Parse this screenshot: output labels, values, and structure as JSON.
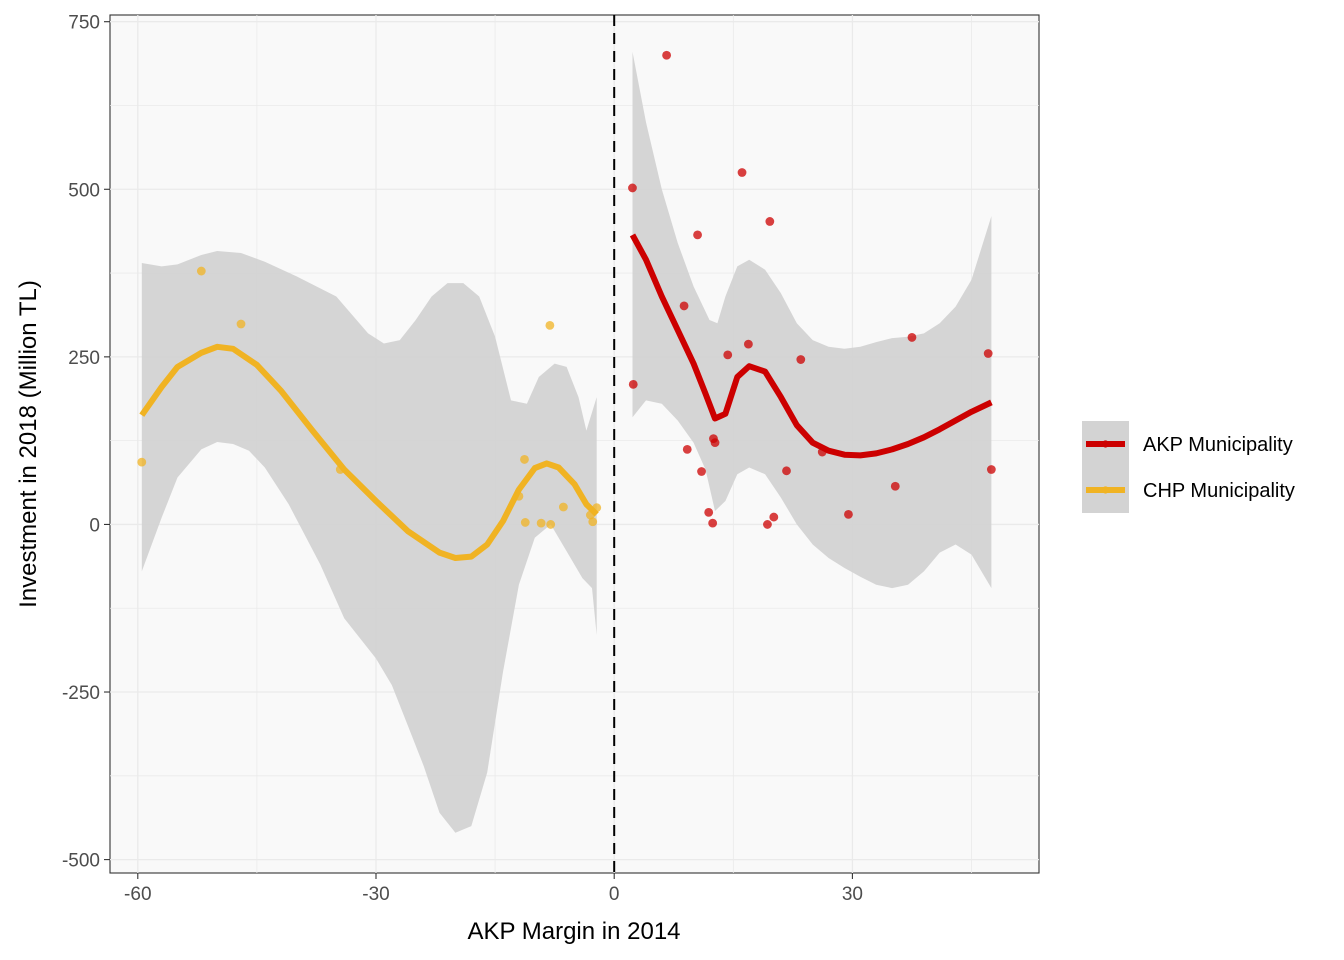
{
  "chart_data": {
    "type": "scatter",
    "xlabel": "AKP Margin in 2014",
    "ylabel": "Investment in 2018 (Million TL)",
    "xlim": [
      -63.5,
      53.5
    ],
    "ylim": [
      -520,
      760
    ],
    "x_ticks": [
      -60,
      -30,
      0,
      30
    ],
    "x_tick_labels": [
      "-60",
      "-30",
      "0",
      "30"
    ],
    "y_ticks": [
      -500,
      -250,
      0,
      250,
      500,
      750
    ],
    "y_tick_labels": [
      "-500",
      "-250",
      "0",
      "250",
      "500",
      "750"
    ],
    "grid": true,
    "cutoff_line_x": 0,
    "legend_position": "right",
    "colors": {
      "akp": "#cc0000",
      "chp": "#f0b323",
      "ribbon": "#d3d3d3",
      "panel": "#f9f9f9",
      "grid": "#eaeaea"
    },
    "series": [
      {
        "name": "AKP Municipality",
        "points": [
          {
            "x": 2.3,
            "y": 502
          },
          {
            "x": 2.4,
            "y": 209
          },
          {
            "x": 6.6,
            "y": 700
          },
          {
            "x": 8.8,
            "y": 326
          },
          {
            "x": 9.2,
            "y": 112
          },
          {
            "x": 10.5,
            "y": 432
          },
          {
            "x": 11.0,
            "y": 79
          },
          {
            "x": 11.9,
            "y": 18
          },
          {
            "x": 12.4,
            "y": 2
          },
          {
            "x": 12.5,
            "y": 128
          },
          {
            "x": 12.7,
            "y": 122
          },
          {
            "x": 14.3,
            "y": 253
          },
          {
            "x": 16.1,
            "y": 525
          },
          {
            "x": 16.9,
            "y": 269
          },
          {
            "x": 19.3,
            "y": 0
          },
          {
            "x": 19.6,
            "y": 452
          },
          {
            "x": 20.1,
            "y": 11
          },
          {
            "x": 21.7,
            "y": 80
          },
          {
            "x": 23.5,
            "y": 246
          },
          {
            "x": 26.2,
            "y": 108
          },
          {
            "x": 29.5,
            "y": 15
          },
          {
            "x": 35.4,
            "y": 57
          },
          {
            "x": 37.5,
            "y": 279
          },
          {
            "x": 47.1,
            "y": 255
          },
          {
            "x": 47.5,
            "y": 82
          }
        ],
        "smooth": [
          {
            "x": 2.3,
            "y": 432
          },
          {
            "x": 4,
            "y": 395
          },
          {
            "x": 6,
            "y": 340
          },
          {
            "x": 8,
            "y": 290
          },
          {
            "x": 10,
            "y": 240
          },
          {
            "x": 11.5,
            "y": 195
          },
          {
            "x": 12.7,
            "y": 158
          },
          {
            "x": 14,
            "y": 165
          },
          {
            "x": 15.5,
            "y": 220
          },
          {
            "x": 17,
            "y": 236
          },
          {
            "x": 19,
            "y": 228
          },
          {
            "x": 21,
            "y": 190
          },
          {
            "x": 23,
            "y": 148
          },
          {
            "x": 25,
            "y": 122
          },
          {
            "x": 27,
            "y": 110
          },
          {
            "x": 29,
            "y": 104
          },
          {
            "x": 31,
            "y": 103
          },
          {
            "x": 33,
            "y": 106
          },
          {
            "x": 35,
            "y": 112
          },
          {
            "x": 37,
            "y": 120
          },
          {
            "x": 39,
            "y": 130
          },
          {
            "x": 41,
            "y": 142
          },
          {
            "x": 43,
            "y": 155
          },
          {
            "x": 45,
            "y": 168
          },
          {
            "x": 47.5,
            "y": 182
          }
        ],
        "band_upper": [
          {
            "x": 2.3,
            "y": 705
          },
          {
            "x": 4,
            "y": 600
          },
          {
            "x": 6,
            "y": 500
          },
          {
            "x": 8,
            "y": 420
          },
          {
            "x": 10,
            "y": 355
          },
          {
            "x": 12,
            "y": 305
          },
          {
            "x": 13,
            "y": 300
          },
          {
            "x": 14,
            "y": 340
          },
          {
            "x": 15.5,
            "y": 385
          },
          {
            "x": 17,
            "y": 395
          },
          {
            "x": 19,
            "y": 380
          },
          {
            "x": 21,
            "y": 345
          },
          {
            "x": 23,
            "y": 300
          },
          {
            "x": 25,
            "y": 275
          },
          {
            "x": 27,
            "y": 265
          },
          {
            "x": 29,
            "y": 262
          },
          {
            "x": 31,
            "y": 265
          },
          {
            "x": 33,
            "y": 272
          },
          {
            "x": 35,
            "y": 278
          },
          {
            "x": 37,
            "y": 280
          },
          {
            "x": 39,
            "y": 285
          },
          {
            "x": 41,
            "y": 300
          },
          {
            "x": 43,
            "y": 325
          },
          {
            "x": 45,
            "y": 365
          },
          {
            "x": 47.5,
            "y": 460
          }
        ],
        "band_lower": [
          {
            "x": 2.3,
            "y": 160
          },
          {
            "x": 4,
            "y": 185
          },
          {
            "x": 6,
            "y": 180
          },
          {
            "x": 8,
            "y": 155
          },
          {
            "x": 10,
            "y": 122
          },
          {
            "x": 11.5,
            "y": 82
          },
          {
            "x": 12.7,
            "y": 20
          },
          {
            "x": 14,
            "y": 35
          },
          {
            "x": 15.5,
            "y": 75
          },
          {
            "x": 17,
            "y": 85
          },
          {
            "x": 19,
            "y": 75
          },
          {
            "x": 21,
            "y": 40
          },
          {
            "x": 23,
            "y": 0
          },
          {
            "x": 25,
            "y": -30
          },
          {
            "x": 27,
            "y": -50
          },
          {
            "x": 29,
            "y": -65
          },
          {
            "x": 31,
            "y": -78
          },
          {
            "x": 33,
            "y": -90
          },
          {
            "x": 35,
            "y": -95
          },
          {
            "x": 37,
            "y": -90
          },
          {
            "x": 39,
            "y": -70
          },
          {
            "x": 41,
            "y": -42
          },
          {
            "x": 43,
            "y": -30
          },
          {
            "x": 45,
            "y": -45
          },
          {
            "x": 47.5,
            "y": -95
          }
        ]
      },
      {
        "name": "CHP Municipality",
        "points": [
          {
            "x": -59.5,
            "y": 93
          },
          {
            "x": -52,
            "y": 378
          },
          {
            "x": -47,
            "y": 299
          },
          {
            "x": -34.5,
            "y": 82
          },
          {
            "x": -12,
            "y": 42
          },
          {
            "x": -11.3,
            "y": 97
          },
          {
            "x": -11.2,
            "y": 3
          },
          {
            "x": -9.2,
            "y": 2
          },
          {
            "x": -8.1,
            "y": 297
          },
          {
            "x": -8.0,
            "y": 0
          },
          {
            "x": -6.4,
            "y": 26
          },
          {
            "x": -3.0,
            "y": 14
          },
          {
            "x": -2.7,
            "y": 4
          },
          {
            "x": -2.2,
            "y": 25
          }
        ],
        "smooth": [
          {
            "x": -59.5,
            "y": 163
          },
          {
            "x": -57,
            "y": 205
          },
          {
            "x": -55,
            "y": 235
          },
          {
            "x": -52,
            "y": 256
          },
          {
            "x": -50,
            "y": 265
          },
          {
            "x": -48,
            "y": 262
          },
          {
            "x": -45,
            "y": 238
          },
          {
            "x": -42,
            "y": 200
          },
          {
            "x": -38,
            "y": 140
          },
          {
            "x": -34,
            "y": 82
          },
          {
            "x": -30,
            "y": 35
          },
          {
            "x": -26,
            "y": -10
          },
          {
            "x": -22,
            "y": -42
          },
          {
            "x": -20,
            "y": -50
          },
          {
            "x": -18,
            "y": -48
          },
          {
            "x": -16,
            "y": -30
          },
          {
            "x": -14,
            "y": 5
          },
          {
            "x": -12,
            "y": 52
          },
          {
            "x": -10,
            "y": 84
          },
          {
            "x": -8.5,
            "y": 91
          },
          {
            "x": -7,
            "y": 85
          },
          {
            "x": -5,
            "y": 60
          },
          {
            "x": -3.5,
            "y": 30
          },
          {
            "x": -2.2,
            "y": 15
          }
        ],
        "band_upper": [
          {
            "x": -59.5,
            "y": 390
          },
          {
            "x": -57,
            "y": 385
          },
          {
            "x": -55,
            "y": 388
          },
          {
            "x": -52,
            "y": 402
          },
          {
            "x": -50,
            "y": 408
          },
          {
            "x": -47,
            "y": 405
          },
          {
            "x": -44,
            "y": 392
          },
          {
            "x": -40,
            "y": 370
          },
          {
            "x": -35,
            "y": 340
          },
          {
            "x": -31,
            "y": 285
          },
          {
            "x": -29,
            "y": 270
          },
          {
            "x": -27,
            "y": 275
          },
          {
            "x": -25,
            "y": 305
          },
          {
            "x": -23,
            "y": 340
          },
          {
            "x": -21,
            "y": 360
          },
          {
            "x": -19,
            "y": 360
          },
          {
            "x": -17,
            "y": 340
          },
          {
            "x": -15,
            "y": 280
          },
          {
            "x": -13,
            "y": 185
          },
          {
            "x": -11,
            "y": 180
          },
          {
            "x": -9.5,
            "y": 220
          },
          {
            "x": -7.5,
            "y": 240
          },
          {
            "x": -6,
            "y": 235
          },
          {
            "x": -4.5,
            "y": 190
          },
          {
            "x": -3.5,
            "y": 140
          },
          {
            "x": -2.2,
            "y": 190
          }
        ],
        "band_lower": [
          {
            "x": -59.5,
            "y": -70
          },
          {
            "x": -57,
            "y": 10
          },
          {
            "x": -55,
            "y": 70
          },
          {
            "x": -52,
            "y": 112
          },
          {
            "x": -50,
            "y": 123
          },
          {
            "x": -48,
            "y": 120
          },
          {
            "x": -46,
            "y": 110
          },
          {
            "x": -44,
            "y": 85
          },
          {
            "x": -41,
            "y": 30
          },
          {
            "x": -37,
            "y": -60
          },
          {
            "x": -34,
            "y": -140
          },
          {
            "x": -30,
            "y": -200
          },
          {
            "x": -28,
            "y": -240
          },
          {
            "x": -26,
            "y": -300
          },
          {
            "x": -24,
            "y": -360
          },
          {
            "x": -22,
            "y": -430
          },
          {
            "x": -20,
            "y": -460
          },
          {
            "x": -18,
            "y": -450
          },
          {
            "x": -16,
            "y": -370
          },
          {
            "x": -14,
            "y": -220
          },
          {
            "x": -12,
            "y": -90
          },
          {
            "x": -10,
            "y": -20
          },
          {
            "x": -8,
            "y": 0
          },
          {
            "x": -6,
            "y": -40
          },
          {
            "x": -4,
            "y": -80
          },
          {
            "x": -2.8,
            "y": -95
          },
          {
            "x": -2.2,
            "y": -165
          }
        ]
      }
    ]
  }
}
